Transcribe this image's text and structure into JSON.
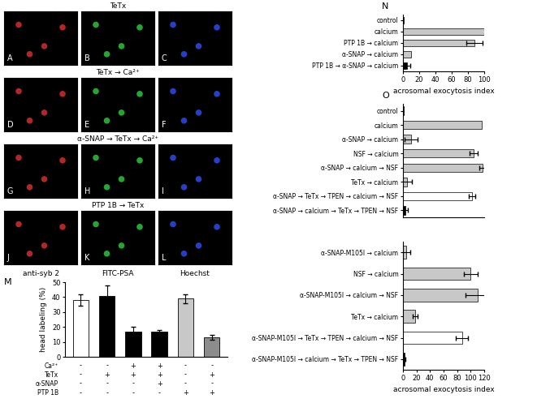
{
  "image_panels": {
    "rows": [
      {
        "title": "TeTx",
        "panels": [
          "A",
          "B",
          "C"
        ]
      },
      {
        "title": "TeTx → Ca²⁺",
        "panels": [
          "D",
          "E",
          "F"
        ]
      },
      {
        "title": "α-SNAP → TeTx → Ca²⁺",
        "panels": [
          "G",
          "H",
          "I"
        ]
      },
      {
        "title": "PTP 1B → TeTx",
        "panels": [
          "J",
          "K",
          "L"
        ]
      }
    ],
    "column_labels": [
      "anti-syb 2",
      "FITC-PSA",
      "Hoechst"
    ]
  },
  "chart_data": [
    {
      "type": "bar",
      "title": "M",
      "categories": [
        null,
        null,
        null,
        null,
        null,
        null
      ],
      "values": [
        38,
        41,
        17,
        17,
        39,
        13
      ],
      "error": [
        4,
        7,
        3,
        1,
        3,
        1.5
      ],
      "colors": [
        "#ffffff",
        "#000000",
        "#000000",
        "#000000",
        "#c8c8c8",
        "#8c8c8c"
      ],
      "ylabel": "head labeling (%)",
      "ylim": [
        0,
        50
      ],
      "yticks": [
        0,
        10,
        20,
        30,
        40,
        50
      ],
      "conditions": [
        {
          "label": "Ca²⁺",
          "signs": [
            "-",
            "-",
            "+",
            "+",
            "-",
            "-"
          ]
        },
        {
          "label": "TeTx",
          "signs": [
            "-",
            "+",
            "+",
            "+",
            "-",
            "+"
          ]
        },
        {
          "label": "α-SNAP",
          "signs": [
            "-",
            "-",
            "-",
            "+",
            "-",
            "-"
          ]
        },
        {
          "label": "PTP 1B",
          "signs": [
            "-",
            "-",
            "-",
            "-",
            "+",
            "+"
          ]
        }
      ]
    },
    {
      "type": "bar",
      "title": "N",
      "orientation": "horizontal",
      "categories": [
        "control",
        "calcium",
        "PTP 1B → calcium",
        "α-SNAP → calcium",
        "PTP 1B → α-SNAP → calcium"
      ],
      "values": [
        1,
        100,
        88,
        10,
        5
      ],
      "error": [
        null,
        null,
        10,
        null,
        4
      ],
      "colors": [
        "#000000",
        "#c8c8c8",
        "#c8c8c8",
        "#c8c8c8",
        "#000000"
      ],
      "xlabel": "acrosomal exocytosis index",
      "xlim": [
        0,
        100
      ],
      "xticks": [
        0,
        20,
        40,
        60,
        80,
        100
      ]
    },
    {
      "type": "bar",
      "title": "O",
      "orientation": "horizontal",
      "tick_labels": false,
      "categories": [
        "control",
        "calcium",
        "α-SNAP → calcium",
        "NSF → calcium",
        "α-SNAP → calcium → NSF",
        "TeTx → calcium",
        "α-SNAP → TeTx → TPEN → calcium → NSF",
        "α-SNAP → calcium → TeTx → TPEN → NSF"
      ],
      "values": [
        1,
        97,
        10,
        87,
        98,
        5,
        85,
        3
      ],
      "error": [
        null,
        null,
        8,
        5,
        4,
        6,
        4,
        3
      ],
      "colors": [
        "#000000",
        "#c8c8c8",
        "#c8c8c8",
        "#c8c8c8",
        "#c8c8c8",
        "#c8c8c8",
        "#ffffff",
        "#000000"
      ],
      "xlim": [
        0,
        100
      ]
    },
    {
      "type": "bar",
      "orientation": "horizontal",
      "categories": [
        "α-SNAP-M105I → calcium",
        "NSF → calcium",
        "α-SNAP-M105I → calcium → NSF",
        "TeTx → calcium",
        "α-SNAP-M105I → TeTx → TPEN → calcium → NSF",
        "α-SNAP-M105I → calcium → TeTx → TPEN → NSF"
      ],
      "values": [
        5,
        100,
        110,
        18,
        87,
        2
      ],
      "error": [
        6,
        10,
        18,
        4,
        9,
        2
      ],
      "colors": [
        "#c8c8c8",
        "#c8c8c8",
        "#c8c8c8",
        "#c8c8c8",
        "#ffffff",
        "#000000"
      ],
      "xlabel": "acrosomal exocytosis index",
      "xlim": [
        0,
        120
      ],
      "xticks": [
        0,
        20,
        40,
        60,
        80,
        100,
        120
      ]
    }
  ]
}
